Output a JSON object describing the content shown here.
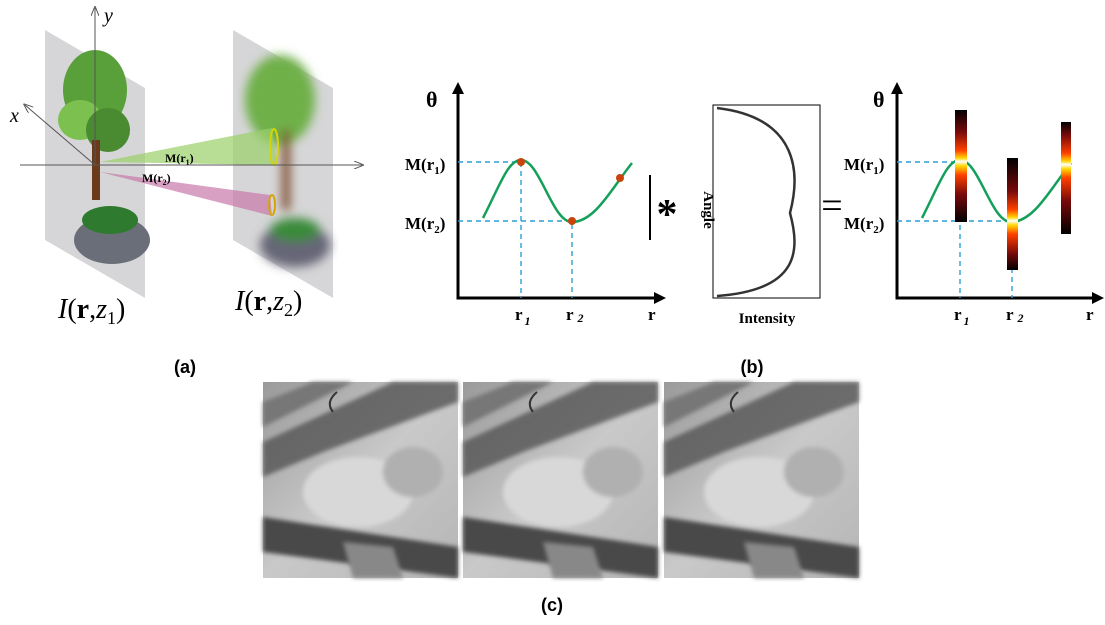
{
  "panel_a": {
    "y_axis": "y",
    "x_axis": "x",
    "m_r1": [
      "M(",
      "r",
      "1",
      ")"
    ],
    "m_r2": [
      "M(",
      "r",
      "2",
      ")"
    ],
    "plane1": [
      "I",
      "(",
      "r",
      ",",
      "z",
      "1",
      ")"
    ],
    "plane2": [
      "I",
      "(",
      "r",
      ",",
      "z",
      "2",
      ")"
    ],
    "caption": "(a)"
  },
  "panel_b": {
    "input": {
      "y_axis": "θ",
      "m_r1": [
        "M(",
        "r",
        "1",
        ")"
      ],
      "m_r2": [
        "M(",
        "r",
        "2",
        ")"
      ],
      "r1": [
        "r",
        "1"
      ],
      "r2": [
        "r",
        "2"
      ],
      "x_axis": "r"
    },
    "convolve": "*",
    "kernel": {
      "y_label": "Angle",
      "x_label": "Intensity"
    },
    "equals": "=",
    "output": {
      "y_axis": "θ",
      "m_r1": [
        "M(",
        "r",
        "1",
        ")"
      ],
      "m_r2": [
        "M(",
        "r",
        "2",
        ")"
      ],
      "r1": [
        "r",
        "1"
      ],
      "r2": [
        "r",
        "2"
      ],
      "x_axis": "r"
    },
    "caption": "(b)"
  },
  "panel_c": {
    "caption": "(c)"
  }
}
